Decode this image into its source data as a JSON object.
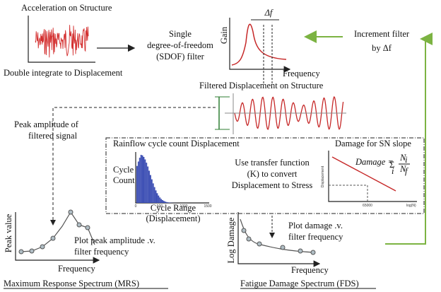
{
  "acceleration": {
    "title": "Acceleration on Structure",
    "caption": "Double integrate to Displacement"
  },
  "sdof_filter": {
    "lines": [
      "Single",
      "degree-of-freedom",
      "(SDOF) filter"
    ]
  },
  "gain_plot": {
    "y_label": "Gain",
    "x_label": "Frequency",
    "delta": "Δf"
  },
  "increment": {
    "lines": [
      "Increment filter",
      "by Δf"
    ]
  },
  "filtered": {
    "title": "Filtered Displacement on Structure"
  },
  "peak": {
    "lines": [
      "Peak amplitude of",
      "filtered signal"
    ]
  },
  "rainflow": {
    "title": "Rainflow cycle count Displacement",
    "y_label": [
      "Cycle",
      "Count"
    ],
    "x_label": [
      "Cycle Range",
      "(Displacement)"
    ],
    "ticks": [
      "0",
      "500",
      "1000",
      "1500"
    ]
  },
  "transfer": {
    "lines": [
      "Use transfer function",
      "(K) to convert",
      "Displacement to Stress"
    ]
  },
  "sn": {
    "title": "Damage for SN slope",
    "y_label": "Displacement",
    "x_label": "log(N)",
    "x_tick": "65000",
    "formula": {
      "lhs": "Damage =",
      "sum": "Σ",
      "index": "i",
      "num": "N",
      "num_sub": "i",
      "den": "N",
      "den_sub": "f"
    }
  },
  "mrs": {
    "y_label": "Peak value",
    "x_label": "Frequency",
    "note": [
      "Plot peak amplitude .v.",
      "filter frequency"
    ],
    "title": "Maximum Response Spectrum (MRS)"
  },
  "fds": {
    "y_label": "Log Damage",
    "x_label": "Frequency",
    "note": [
      "Plot damage .v.",
      "filter frequency"
    ],
    "title": "Fatigue Damage Spectrum (FDS)"
  }
}
